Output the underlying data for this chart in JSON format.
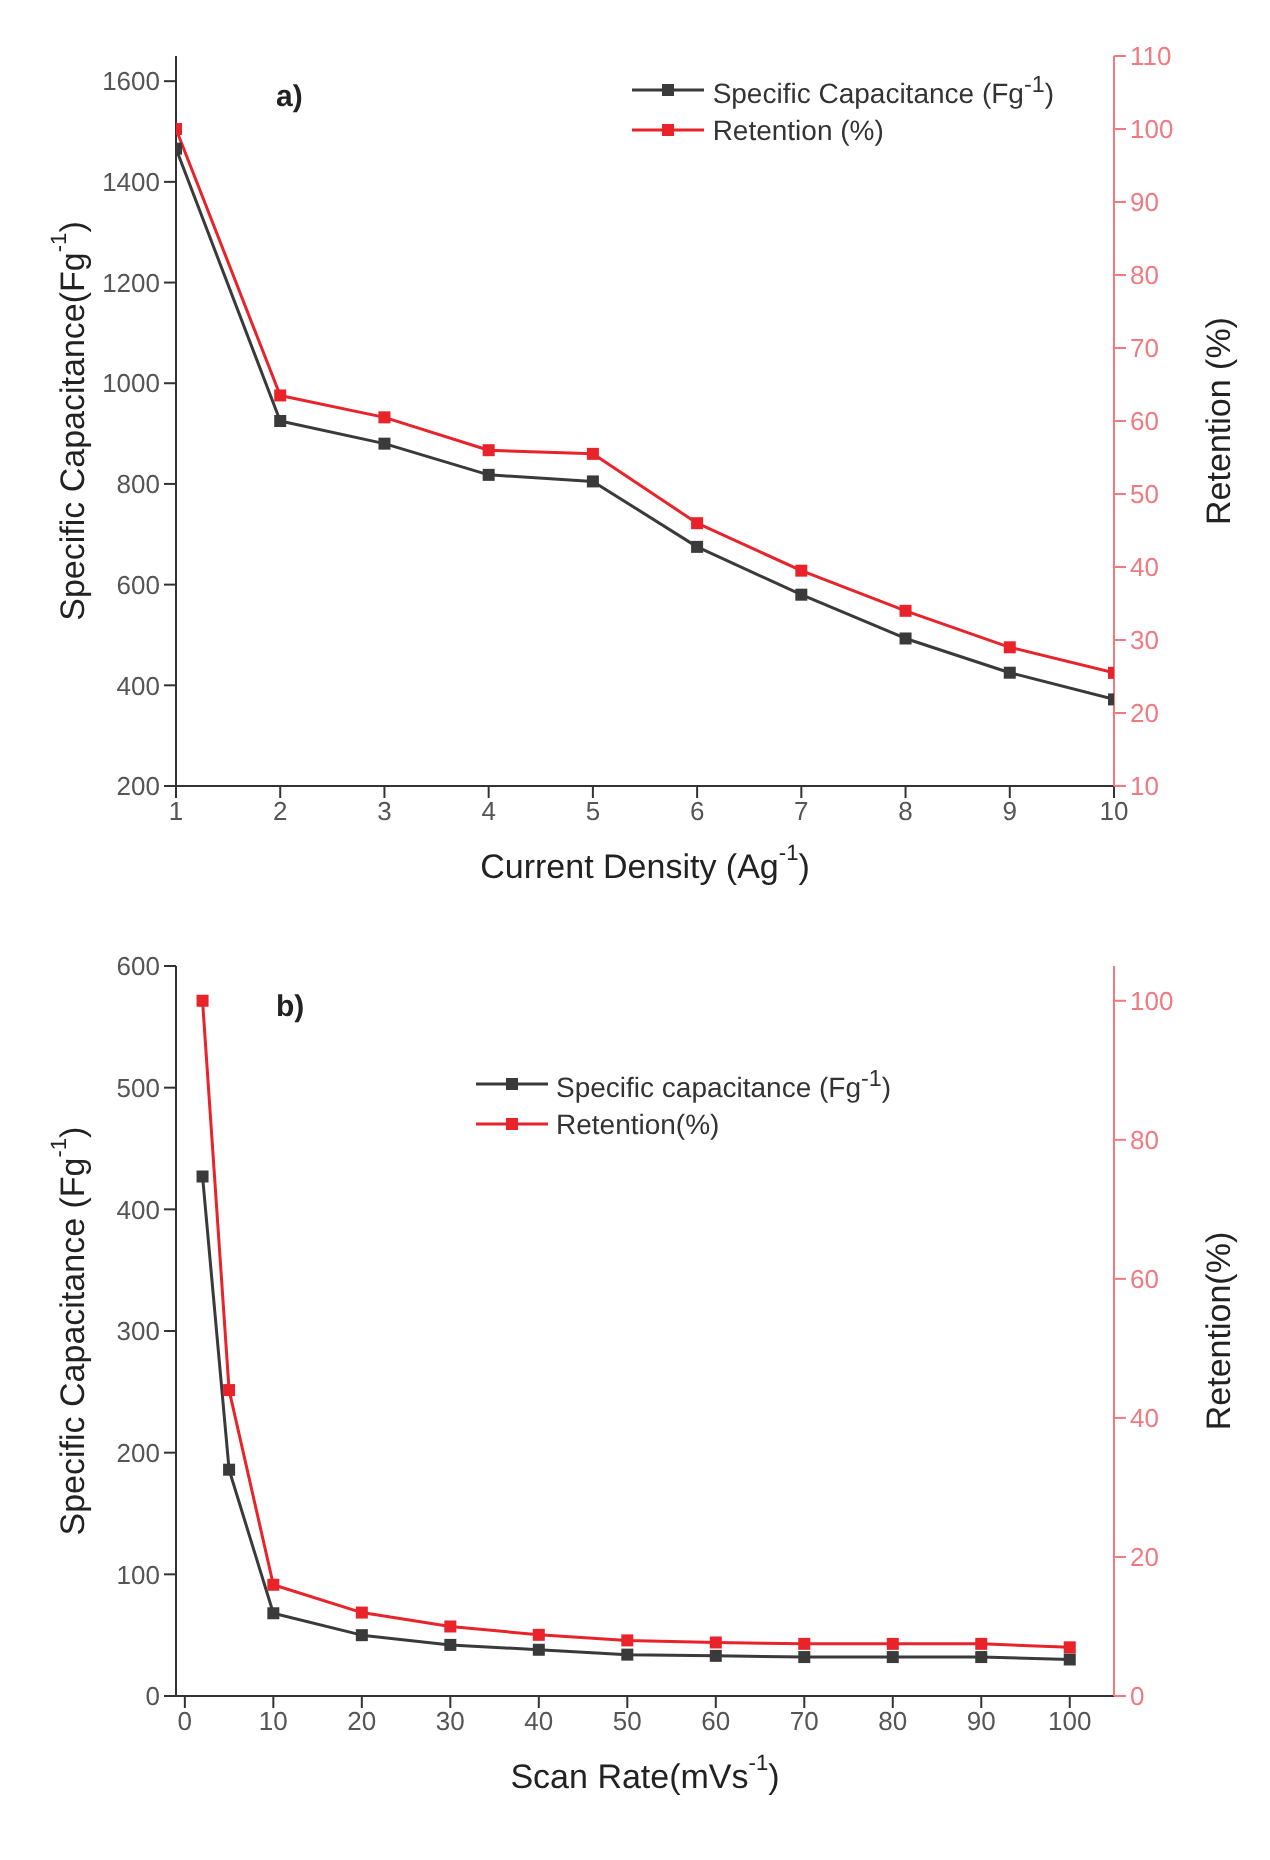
{
  "chart_data": [
    {
      "type": "line",
      "annotations": [
        "a)"
      ],
      "xlabel": "Current Density (Ag$^{-1}$)",
      "ylabel": "Specific Capacitance(Fg$^{-1}$)",
      "y2label": "Retention (%)",
      "x": [
        1,
        2,
        3,
        4,
        5,
        6,
        7,
        8,
        9,
        10
      ],
      "xlim": [
        1,
        10
      ],
      "xticks": [
        1,
        2,
        3,
        4,
        5,
        6,
        7,
        8,
        9,
        10
      ],
      "ylim": [
        200,
        1650
      ],
      "yticks": [
        200,
        400,
        600,
        800,
        1000,
        1200,
        1400,
        1600
      ],
      "y2lim": [
        10,
        110
      ],
      "y2ticks": [
        10,
        20,
        30,
        40,
        50,
        60,
        70,
        80,
        90,
        100,
        110
      ],
      "legend": "top right",
      "marker": "square",
      "grid": false,
      "series": [
        {
          "name": "Specific Capacitance (Fg$^{-1}$)",
          "color": "#3a3a3a",
          "values": [
            1466,
            925,
            880,
            818,
            805,
            675,
            580,
            493,
            425,
            372
          ]
        },
        {
          "name": "Retention (%)",
          "color": "#e8232a",
          "axis": "y2",
          "values": [
            100,
            63.5,
            60.5,
            56,
            55.5,
            46,
            39.5,
            34,
            29,
            25.5
          ]
        }
      ]
    },
    {
      "type": "line",
      "annotations": [
        "b)"
      ],
      "xlabel": "Scan Rate(mVs$^{-1}$)",
      "ylabel": "Specific Capacitance (Fg$^{-1}$)",
      "y2label": "Retention(%)",
      "x": [
        2,
        5,
        10,
        20,
        30,
        40,
        50,
        60,
        70,
        80,
        90,
        100
      ],
      "xlim": [
        -1,
        105
      ],
      "xticks": [
        0,
        10,
        20,
        30,
        40,
        50,
        60,
        70,
        80,
        90,
        100
      ],
      "ylim": [
        0,
        600
      ],
      "yticks": [
        0,
        100,
        200,
        300,
        400,
        500,
        600
      ],
      "y2lim": [
        0,
        105
      ],
      "y2ticks": [
        0,
        20,
        40,
        60,
        80,
        100
      ],
      "legend": "top",
      "marker": "square",
      "grid": false,
      "series": [
        {
          "name": "Specific capacitance (Fg$^{-1}$)",
          "color": "#3a3a3a",
          "values": [
            427,
            186,
            68,
            50,
            42,
            38,
            34,
            33,
            32,
            32,
            32,
            30
          ]
        },
        {
          "name": "Retention(%)",
          "color": "#e8232a",
          "axis": "y2",
          "values": [
            100,
            44,
            16,
            12,
            10,
            8.8,
            8,
            7.7,
            7.5,
            7.5,
            7.5,
            7
          ]
        }
      ]
    }
  ]
}
